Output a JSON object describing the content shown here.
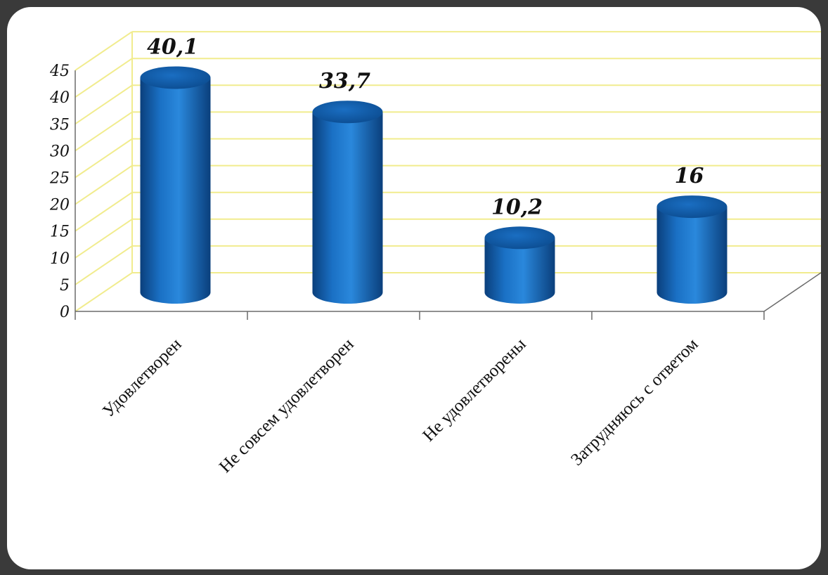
{
  "chart_data": {
    "type": "bar",
    "categories": [
      "Удовлетворен",
      "Не совсем  удовлетворен",
      "Не удовлетворены",
      "Затрудняюсь с ответом"
    ],
    "values": [
      40.1,
      33.7,
      10.2,
      16
    ],
    "value_labels": [
      "40,1",
      "33,7",
      "10,2",
      "16"
    ],
    "y_ticks": [
      "0",
      "5",
      "10",
      "15",
      "20",
      "25",
      "30",
      "35",
      "40",
      "45"
    ],
    "ylim": [
      0,
      45
    ],
    "grid": true,
    "legend": "none",
    "style": "3d-cylinder",
    "colors": {
      "bar": "#1665b5",
      "bar_top": "#0d4f93",
      "grid": "#f1ec8e",
      "axis": "#6b6b6b",
      "background": "#ffffff",
      "frame": "#3a3a3a"
    }
  }
}
